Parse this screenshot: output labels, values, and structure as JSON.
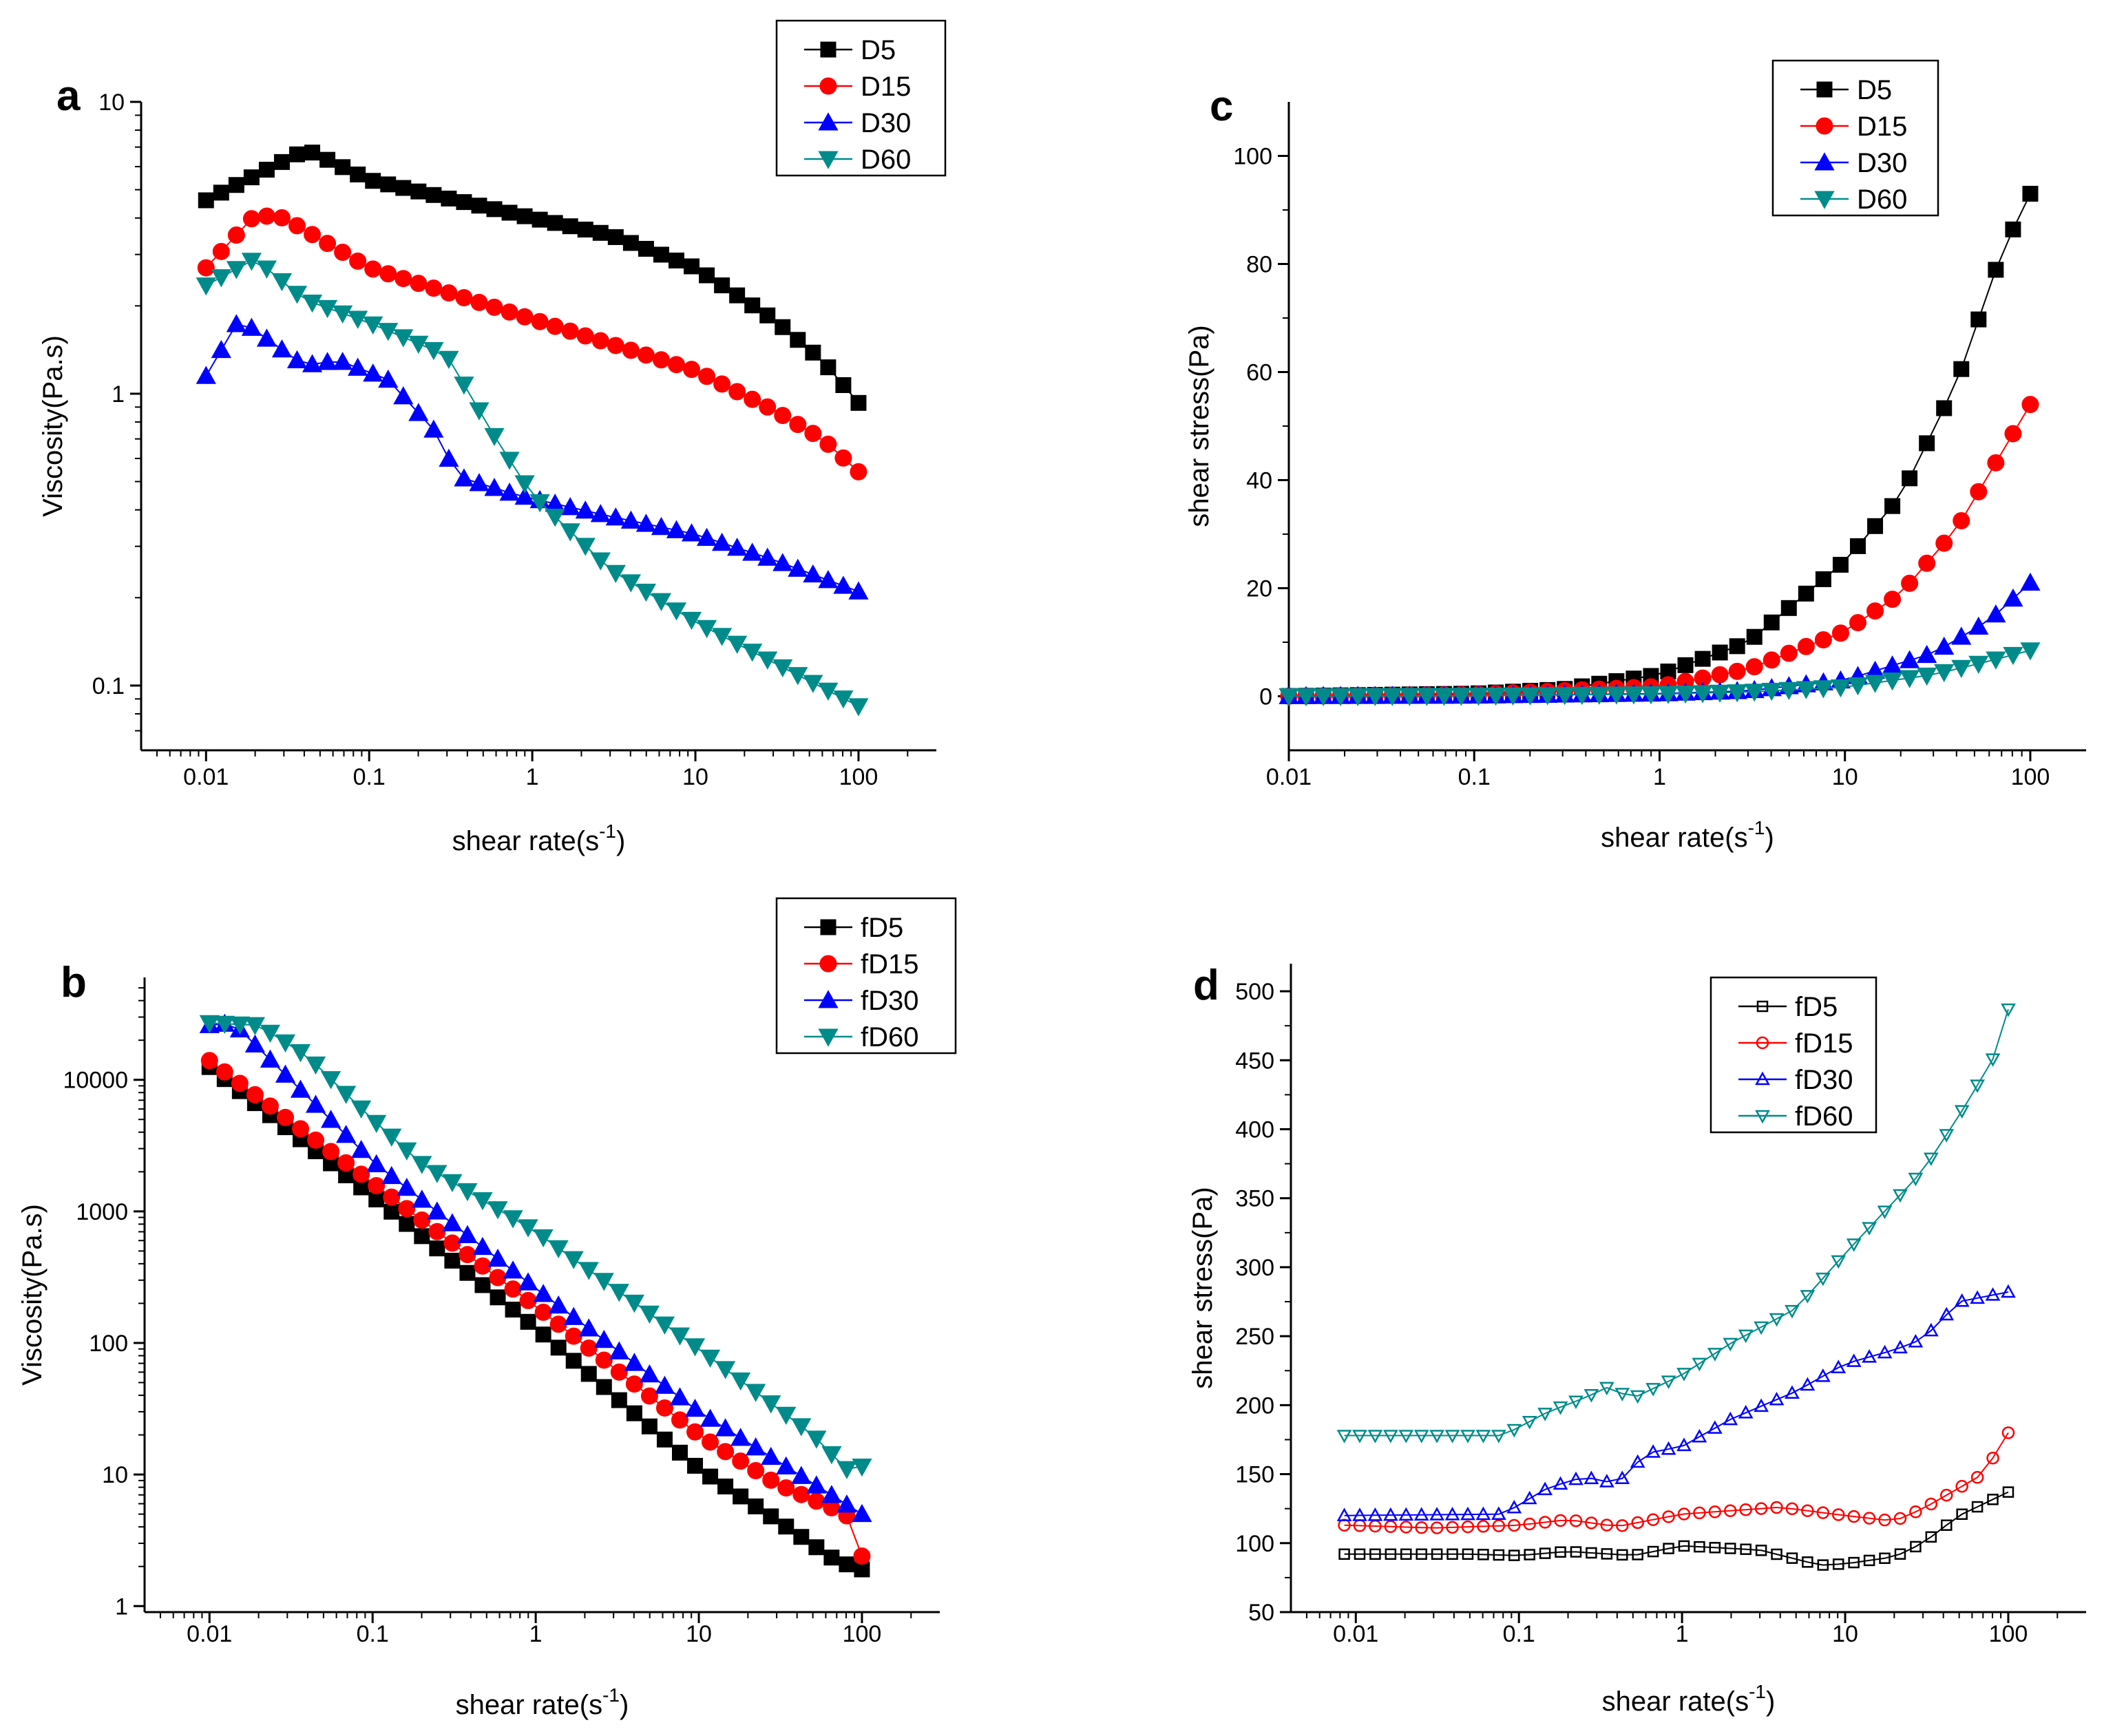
{
  "colors": {
    "D5": "#000000",
    "D15": "#ff0000",
    "D30": "#0000ff",
    "D60": "#008b8b"
  },
  "chart_data": [
    {
      "panel": "a",
      "type": "line",
      "xscale": "log",
      "yscale": "log",
      "xlabel": "shear rate(s",
      "xlabel_sup": "-1",
      "xlabel_end": ")",
      "ylabel": "Viscosity(Pa.s)",
      "xlim": [
        0.004,
        300
      ],
      "ylim": [
        0.06,
        10
      ],
      "xticks": [
        0.01,
        0.1,
        1,
        10,
        100
      ],
      "xtick_labels": [
        "0.01",
        "0.1",
        "1",
        "10",
        "100"
      ],
      "yticks": [
        0.1,
        1,
        10
      ],
      "ytick_labels": [
        "0.1",
        "1",
        "10"
      ],
      "legend_position": "top-right",
      "series": [
        {
          "name": "D5",
          "marker": "square",
          "filled": true,
          "points": [
            [
              0.01,
              4.6
            ],
            [
              0.04,
              6.8
            ],
            [
              0.045,
              6.7
            ],
            [
              0.1,
              5.4
            ],
            [
              1,
              4.0
            ],
            [
              3,
              3.5
            ],
            [
              10,
              2.7
            ],
            [
              30,
              1.8
            ],
            [
              60,
              1.3
            ],
            [
              100,
              0.93
            ]
          ]
        },
        {
          "name": "D15",
          "marker": "circle",
          "filled": true,
          "points": [
            [
              0.01,
              2.7
            ],
            [
              0.02,
              4.1
            ],
            [
              0.03,
              4.0
            ],
            [
              0.1,
              2.7
            ],
            [
              1,
              1.8
            ],
            [
              10,
              1.2
            ],
            [
              30,
              0.88
            ],
            [
              60,
              0.7
            ],
            [
              100,
              0.54
            ]
          ]
        },
        {
          "name": "D30",
          "marker": "triangle-up",
          "filled": true,
          "points": [
            [
              0.01,
              1.15
            ],
            [
              0.016,
              1.8
            ],
            [
              0.04,
              1.25
            ],
            [
              0.065,
              1.3
            ],
            [
              0.13,
              1.12
            ],
            [
              0.25,
              0.75
            ],
            [
              0.35,
              0.52
            ],
            [
              0.8,
              0.45
            ],
            [
              3,
              0.38
            ],
            [
              10,
              0.33
            ],
            [
              30,
              0.27
            ],
            [
              100,
              0.21
            ]
          ]
        },
        {
          "name": "D60",
          "marker": "triangle-down",
          "filled": true,
          "points": [
            [
              0.01,
              2.35
            ],
            [
              0.02,
              2.9
            ],
            [
              0.04,
              2.1
            ],
            [
              0.1,
              1.75
            ],
            [
              0.3,
              1.35
            ],
            [
              0.6,
              0.7
            ],
            [
              1,
              0.45
            ],
            [
              3,
              0.25
            ],
            [
              10,
              0.165
            ],
            [
              30,
              0.12
            ],
            [
              100,
              0.085
            ]
          ]
        }
      ]
    },
    {
      "panel": "b",
      "type": "line",
      "xscale": "log",
      "yscale": "log",
      "xlabel": "shear rate(s",
      "xlabel_sup": "-1",
      "xlabel_end": ")",
      "ylabel": "Viscosity(Pa.s)",
      "xlim": [
        0.004,
        300
      ],
      "ylim": [
        0.9,
        60000
      ],
      "xticks": [
        0.01,
        0.1,
        1,
        10,
        100
      ],
      "xtick_labels": [
        "0.01",
        "0.1",
        "1",
        "10",
        "100"
      ],
      "yticks": [
        1,
        10,
        100,
        1000,
        10000
      ],
      "ytick_labels": [
        "1",
        "10",
        "100",
        "1000",
        "10000"
      ],
      "legend_position": "top-right",
      "series": [
        {
          "name": "fD5",
          "marker": "square",
          "filled": true,
          "points": [
            [
              0.01,
              12500
            ],
            [
              0.1,
              1300
            ],
            [
              1,
              130
            ],
            [
              10,
              11
            ],
            [
              30,
              4.5
            ],
            [
              70,
              2.2
            ],
            [
              100,
              1.9
            ]
          ]
        },
        {
          "name": "fD15",
          "marker": "circle",
          "filled": true,
          "points": [
            [
              0.01,
              14000
            ],
            [
              0.1,
              1650
            ],
            [
              1,
              190
            ],
            [
              10,
              20
            ],
            [
              30,
              8.5
            ],
            [
              80,
              5
            ],
            [
              100,
              2.4
            ]
          ]
        },
        {
          "name": "fD30",
          "marker": "triangle-up",
          "filled": true,
          "points": [
            [
              0.01,
              26000
            ],
            [
              0.014,
              27000
            ],
            [
              0.1,
              2400
            ],
            [
              1,
              260
            ],
            [
              10,
              30
            ],
            [
              100,
              5
            ]
          ]
        },
        {
          "name": "fD60",
          "marker": "triangle-down",
          "filled": true,
          "points": [
            [
              0.01,
              27000
            ],
            [
              0.02,
              26000
            ],
            [
              0.04,
              15000
            ],
            [
              0.1,
              5000
            ],
            [
              0.2,
              2300
            ],
            [
              1,
              700
            ],
            [
              10,
              90
            ],
            [
              50,
              20
            ],
            [
              80,
              11
            ],
            [
              100,
              11.5
            ]
          ]
        }
      ]
    },
    {
      "panel": "c",
      "type": "line",
      "xscale": "log",
      "yscale": "linear",
      "xlabel": "shear rate(s",
      "xlabel_sup": "-1",
      "xlabel_end": ")",
      "ylabel": "shear stress(Pa)",
      "xlim": [
        0.01,
        200
      ],
      "ylim": [
        -10,
        110
      ],
      "xticks": [
        0.01,
        0.1,
        1,
        10,
        100
      ],
      "xtick_labels": [
        "0.01",
        "0.1",
        "1",
        "10",
        "100"
      ],
      "yticks": [
        0,
        20,
        40,
        60,
        80,
        100
      ],
      "ytick_labels": [
        "0",
        "20",
        "40",
        "60",
        "80",
        "100"
      ],
      "legend_position": "top-right",
      "series": [
        {
          "name": "D5",
          "marker": "square",
          "filled": true,
          "points": [
            [
              0.01,
              0.05
            ],
            [
              0.1,
              0.5
            ],
            [
              0.3,
              1.3
            ],
            [
              1,
              4
            ],
            [
              3,
              10
            ],
            [
              10,
              25
            ],
            [
              20,
              37
            ],
            [
              40,
              58
            ],
            [
              70,
              82
            ],
            [
              100,
              93
            ]
          ]
        },
        {
          "name": "D15",
          "marker": "circle",
          "filled": true,
          "points": [
            [
              0.01,
              0.03
            ],
            [
              0.1,
              0.3
            ],
            [
              1,
              1.8
            ],
            [
              3,
              5
            ],
            [
              10,
              12
            ],
            [
              20,
              19
            ],
            [
              40,
              31
            ],
            [
              70,
              45
            ],
            [
              100,
              54
            ]
          ]
        },
        {
          "name": "D30",
          "marker": "triangle-up",
          "filled": true,
          "points": [
            [
              0.01,
              0.01
            ],
            [
              0.1,
              0.1
            ],
            [
              1,
              0.5
            ],
            [
              3,
              1
            ],
            [
              10,
              3
            ],
            [
              30,
              8
            ],
            [
              60,
              14
            ],
            [
              100,
              21
            ]
          ]
        },
        {
          "name": "D60",
          "marker": "triangle-down",
          "filled": true,
          "points": [
            [
              0.01,
              0.02
            ],
            [
              0.1,
              0.1
            ],
            [
              1,
              0.4
            ],
            [
              3,
              0.8
            ],
            [
              10,
              1.7
            ],
            [
              30,
              4
            ],
            [
              60,
              6.5
            ],
            [
              100,
              8.5
            ]
          ]
        }
      ]
    },
    {
      "panel": "d",
      "type": "line",
      "xscale": "log",
      "yscale": "linear",
      "xlabel": "shear rate(s",
      "xlabel_sup": "-1",
      "xlabel_end": ")",
      "ylabel": "shear stress(Pa)",
      "xlim": [
        0.004,
        300
      ],
      "ylim": [
        50,
        520
      ],
      "xticks": [
        0.01,
        0.1,
        1,
        10,
        100
      ],
      "xtick_labels": [
        "0.01",
        "0.1",
        "1",
        "10",
        "100"
      ],
      "yticks": [
        50,
        100,
        150,
        200,
        250,
        300,
        350,
        400,
        450,
        500
      ],
      "ytick_labels": [
        "50",
        "100",
        "150",
        "200",
        "250",
        "300",
        "350",
        "400",
        "450",
        "500"
      ],
      "legend_position": "upper-left",
      "series": [
        {
          "name": "fD5",
          "marker": "small-square",
          "filled": false,
          "points": [
            [
              0.0085,
              92
            ],
            [
              0.05,
              92
            ],
            [
              0.1,
              91
            ],
            [
              0.2,
              94
            ],
            [
              0.5,
              91
            ],
            [
              1,
              98
            ],
            [
              3,
              95
            ],
            [
              7,
              84
            ],
            [
              10,
              85
            ],
            [
              20,
              90
            ],
            [
              30,
              100
            ],
            [
              50,
              120
            ],
            [
              100,
              137
            ]
          ]
        },
        {
          "name": "fD15",
          "marker": "small-circle",
          "filled": false,
          "points": [
            [
              0.0085,
              113
            ],
            [
              0.03,
              111
            ],
            [
              0.1,
              113
            ],
            [
              0.2,
              117
            ],
            [
              0.4,
              112
            ],
            [
              1,
              121
            ],
            [
              4,
              126
            ],
            [
              10,
              120
            ],
            [
              20,
              116
            ],
            [
              30,
              125
            ],
            [
              50,
              140
            ],
            [
              70,
              150
            ],
            [
              100,
              180
            ]
          ]
        },
        {
          "name": "fD30",
          "marker": "small-triangle-up",
          "filled": false,
          "points": [
            [
              0.0085,
              120
            ],
            [
              0.08,
              121
            ],
            [
              0.15,
              140
            ],
            [
              0.25,
              148
            ],
            [
              0.4,
              143
            ],
            [
              0.6,
              165
            ],
            [
              1,
              170
            ],
            [
              2,
              190
            ],
            [
              5,
              210
            ],
            [
              10,
              230
            ],
            [
              20,
              240
            ],
            [
              30,
              248
            ],
            [
              50,
              275
            ],
            [
              100,
              282
            ]
          ]
        },
        {
          "name": "fD60",
          "marker": "small-triangle-down",
          "filled": false,
          "points": [
            [
              0.0085,
              178
            ],
            [
              0.08,
              178
            ],
            [
              0.15,
              195
            ],
            [
              0.25,
              205
            ],
            [
              0.35,
              213
            ],
            [
              0.5,
              205
            ],
            [
              1,
              222
            ],
            [
              2,
              245
            ],
            [
              5,
              270
            ],
            [
              10,
              310
            ],
            [
              30,
              370
            ],
            [
              50,
              410
            ],
            [
              80,
              450
            ],
            [
              100,
              487
            ]
          ]
        }
      ]
    }
  ]
}
